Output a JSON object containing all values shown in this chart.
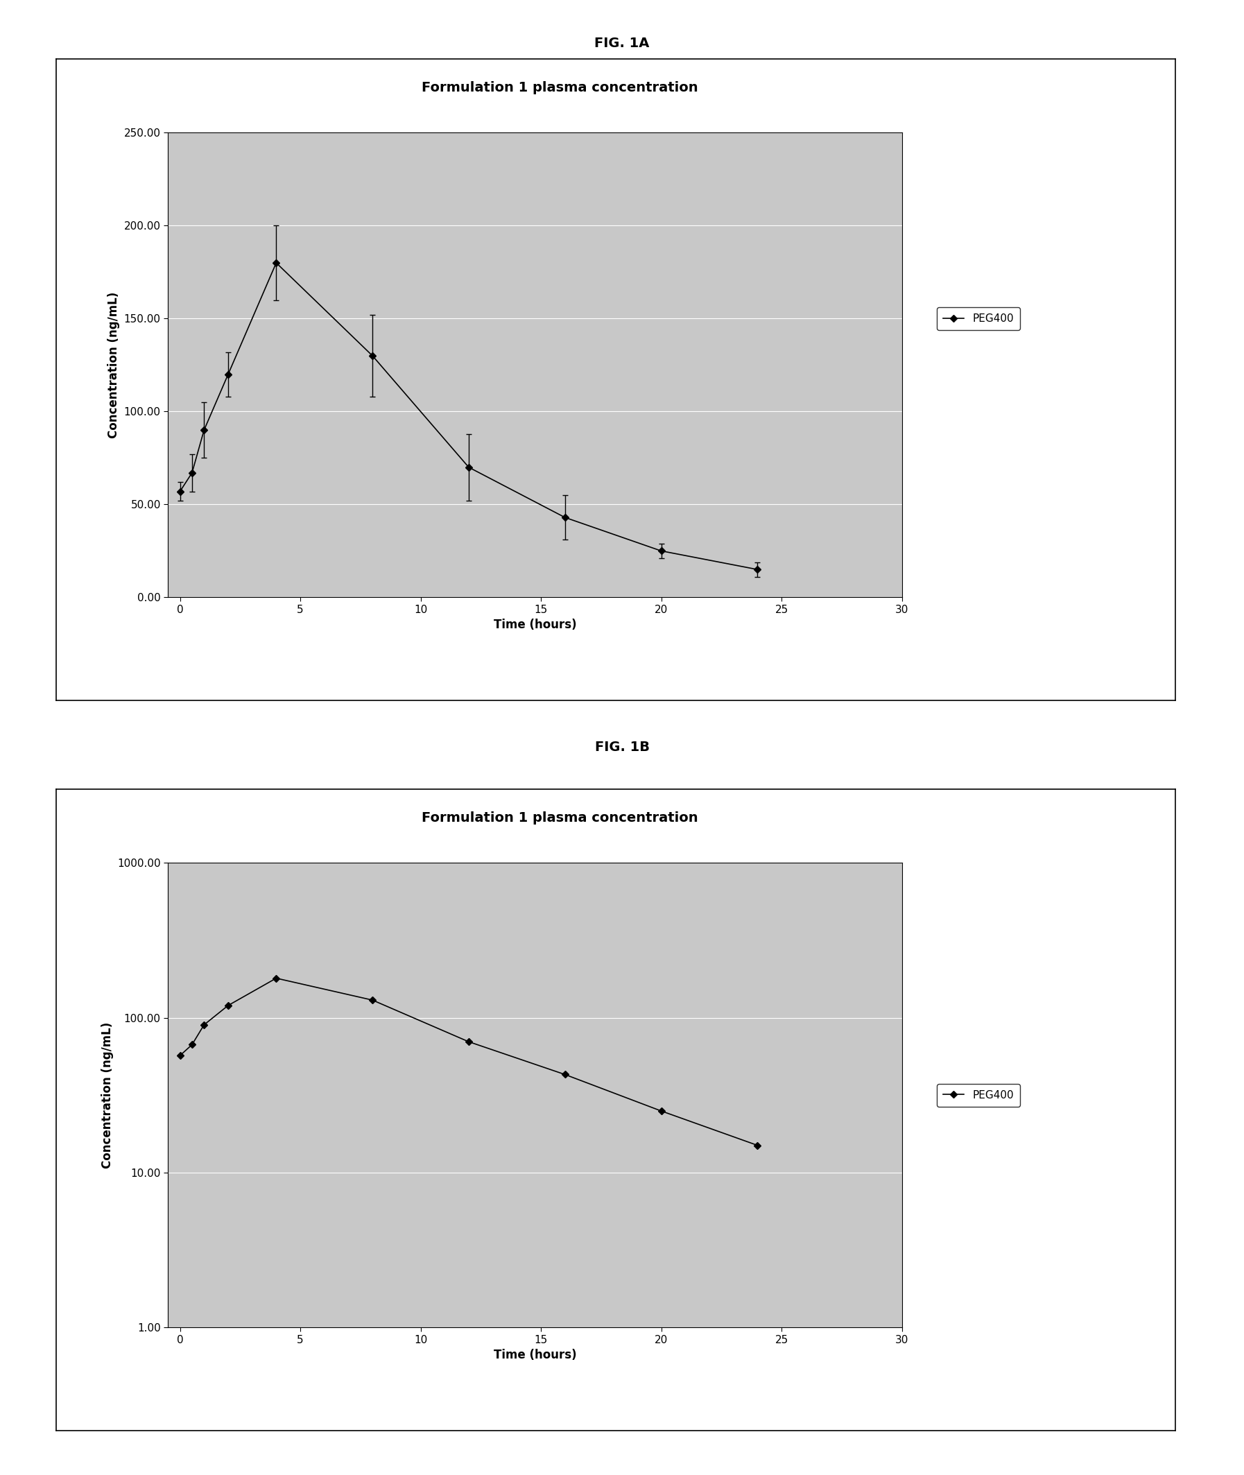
{
  "fig1a_label": "FIG. 1A",
  "fig1b_label": "FIG. 1B",
  "chart_title": "Formulation 1 plasma concentration",
  "xlabel": "Time (hours)",
  "ylabel": "Concentration (ng/mL)",
  "legend_label": "PEG400",
  "x": [
    0,
    0.5,
    1,
    2,
    4,
    8,
    12,
    16,
    20,
    24
  ],
  "y": [
    57,
    67,
    90,
    120,
    180,
    130,
    70,
    43,
    25,
    15
  ],
  "yerr": [
    5,
    10,
    15,
    12,
    20,
    22,
    18,
    12,
    4,
    4
  ],
  "xlim": [
    -0.5,
    30
  ],
  "ylim_linear": [
    0,
    250
  ],
  "yticks_linear": [
    0.0,
    50.0,
    100.0,
    150.0,
    200.0,
    250.0
  ],
  "ylim_log": [
    1.0,
    1000.0
  ],
  "yticks_log": [
    1.0,
    10.0,
    100.0,
    1000.0
  ],
  "ytick_labels_log": [
    "1.00",
    "10.00",
    "100.00",
    "1000.00"
  ],
  "xticks": [
    0,
    5,
    10,
    15,
    20,
    25,
    30
  ],
  "line_color": "#000000",
  "marker": "D",
  "marker_size": 5,
  "line_width": 1.2,
  "plot_bg_color": "#c8c8c8",
  "outer_bg_color": "#ffffff",
  "fig_bg_color": "#ffffff",
  "chart_title_fontsize": 14,
  "axis_label_fontsize": 12,
  "tick_fontsize": 11,
  "fig_label_fontsize": 14,
  "legend_fontsize": 11
}
